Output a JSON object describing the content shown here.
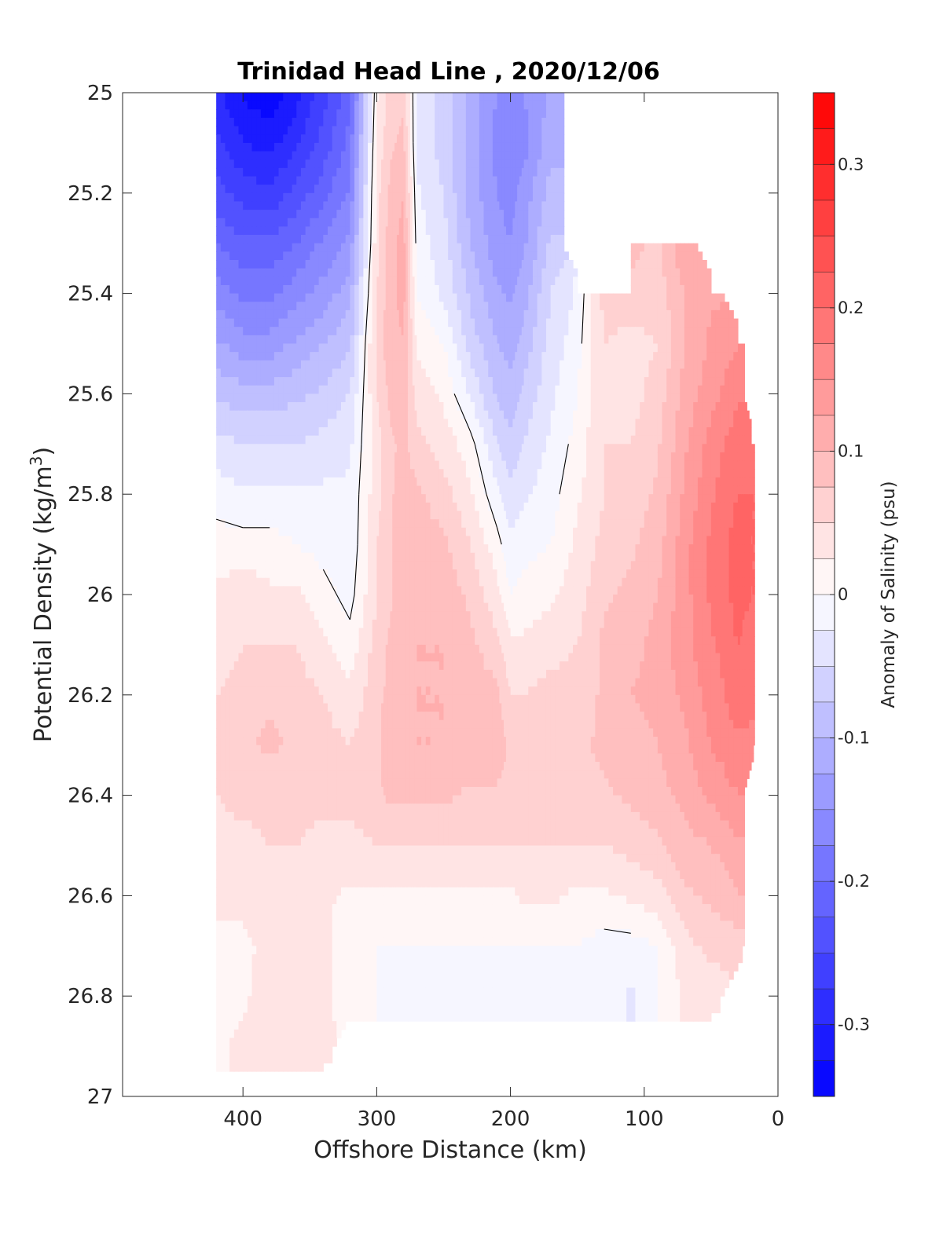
{
  "chart_data": {
    "type": "contour",
    "title": "Trinidad Head Line , 2020/12/06",
    "xlabel": "Offshore Distance (km)",
    "ylabel_main": "Potential Density (kg/m",
    "ylabel_sup": "3",
    "ylabel_end": ")",
    "colorbar_label": "Anomaly of Salinity (psu)",
    "xlim": [
      490,
      0
    ],
    "ylim": [
      25,
      27
    ],
    "x_ticks": [
      400,
      300,
      200,
      100,
      0
    ],
    "y_ticks": [
      25,
      25.2,
      25.4,
      25.6,
      25.8,
      26,
      26.2,
      26.4,
      26.6,
      26.8,
      27
    ],
    "colorbar_range": [
      -0.35,
      0.35
    ],
    "colorbar_step": 0.025,
    "colorbar_ticks": [
      -0.3,
      -0.2,
      -0.1,
      0,
      0.1,
      0.2,
      0.3
    ],
    "colormap": {
      "negative": "#0000ff",
      "zero": "#ffffff",
      "positive": "#ff0000"
    },
    "contour_line_level": 0,
    "x": [
      420,
      400,
      380,
      360,
      340,
      320,
      300,
      290,
      280,
      270,
      250,
      230,
      210,
      200,
      190,
      170,
      150,
      130,
      110,
      90,
      70,
      50,
      30,
      20
    ],
    "y": [
      25,
      25.1,
      25.2,
      25.3,
      25.4,
      25.5,
      25.6,
      25.7,
      25.8,
      25.9,
      26,
      26.1,
      26.2,
      26.3,
      26.4,
      26.5,
      26.6,
      26.7,
      26.8,
      26.9
    ],
    "values": [
      [
        -0.29,
        -0.33,
        -0.34,
        -0.31,
        -0.26,
        -0.21,
        0.02,
        0.06,
        0.07,
        -0.03,
        -0.06,
        -0.11,
        -0.15,
        -0.16,
        -0.15,
        -0.12,
        null,
        null,
        null,
        null,
        null,
        null,
        null,
        null
      ],
      [
        -0.27,
        -0.3,
        -0.31,
        -0.28,
        -0.24,
        -0.19,
        0.03,
        0.07,
        0.08,
        -0.03,
        -0.06,
        -0.11,
        -0.16,
        -0.17,
        -0.16,
        -0.11,
        null,
        null,
        null,
        null,
        null,
        null,
        null,
        null
      ],
      [
        -0.24,
        -0.26,
        -0.27,
        -0.24,
        -0.21,
        -0.17,
        0.04,
        0.08,
        0.1,
        -0.02,
        -0.05,
        -0.11,
        -0.15,
        -0.16,
        -0.14,
        -0.09,
        null,
        null,
        null,
        null,
        null,
        null,
        null,
        null
      ],
      [
        -0.2,
        -0.22,
        -0.22,
        -0.2,
        -0.17,
        -0.14,
        0.04,
        0.09,
        0.11,
        -0.01,
        -0.04,
        -0.1,
        -0.14,
        -0.15,
        -0.13,
        -0.07,
        null,
        null,
        0.08,
        0.07,
        0.12,
        null,
        null,
        null
      ],
      [
        -0.16,
        -0.18,
        -0.18,
        -0.16,
        -0.14,
        -0.11,
        0.05,
        0.09,
        0.11,
        0.0,
        -0.03,
        -0.08,
        -0.12,
        -0.13,
        -0.11,
        -0.05,
        -0.02,
        0.06,
        0.07,
        0.06,
        0.1,
        0.12,
        null,
        null
      ],
      [
        -0.12,
        -0.14,
        -0.14,
        -0.12,
        -0.1,
        -0.08,
        0.06,
        0.09,
        0.1,
        0.02,
        0.0,
        -0.06,
        -0.1,
        -0.11,
        -0.09,
        -0.04,
        -0.01,
        0.05,
        0.04,
        0.05,
        0.1,
        0.13,
        0.15,
        null
      ],
      [
        -0.08,
        -0.09,
        -0.09,
        -0.08,
        -0.07,
        -0.05,
        0.05,
        0.08,
        0.09,
        0.04,
        0.02,
        -0.03,
        -0.08,
        -0.09,
        -0.07,
        -0.03,
        0.0,
        0.05,
        0.04,
        0.06,
        0.11,
        0.14,
        0.17,
        null
      ],
      [
        -0.04,
        -0.05,
        -0.05,
        -0.05,
        -0.04,
        -0.03,
        0.04,
        0.07,
        0.08,
        0.06,
        0.04,
        0.01,
        -0.05,
        -0.07,
        -0.05,
        -0.02,
        0.01,
        0.05,
        0.05,
        0.07,
        0.12,
        0.16,
        0.19,
        0.19
      ],
      [
        -0.01,
        -0.02,
        -0.02,
        -0.02,
        -0.02,
        -0.02,
        0.04,
        0.07,
        0.09,
        0.08,
        0.06,
        0.03,
        -0.02,
        -0.04,
        -0.03,
        -0.01,
        0.02,
        0.05,
        0.06,
        0.08,
        0.13,
        0.17,
        0.2,
        0.2
      ],
      [
        0.01,
        0.01,
        0.01,
        0.0,
        -0.01,
        -0.02,
        0.05,
        0.07,
        0.09,
        0.09,
        0.08,
        0.05,
        0.01,
        -0.02,
        -0.01,
        0.0,
        0.03,
        0.06,
        0.07,
        0.09,
        0.14,
        0.18,
        0.21,
        0.2
      ],
      [
        0.03,
        0.04,
        0.03,
        0.03,
        0.01,
        -0.01,
        0.05,
        0.07,
        0.09,
        0.1,
        0.09,
        0.07,
        0.03,
        0.0,
        0.01,
        0.02,
        0.04,
        0.07,
        0.08,
        0.1,
        0.14,
        0.18,
        0.21,
        0.2
      ],
      [
        0.04,
        0.05,
        0.05,
        0.05,
        0.03,
        0.01,
        0.06,
        0.08,
        0.09,
        0.1,
        0.1,
        0.08,
        0.06,
        0.03,
        0.03,
        0.04,
        0.05,
        0.08,
        0.09,
        0.11,
        0.14,
        0.17,
        0.2,
        0.19
      ],
      [
        0.05,
        0.06,
        0.07,
        0.06,
        0.05,
        0.03,
        0.07,
        0.08,
        0.09,
        0.1,
        0.1,
        0.09,
        0.08,
        0.05,
        0.05,
        0.06,
        0.06,
        0.08,
        0.1,
        0.11,
        0.13,
        0.16,
        0.19,
        0.18
      ],
      [
        0.06,
        0.07,
        0.08,
        0.07,
        0.06,
        0.05,
        0.07,
        0.09,
        0.09,
        0.1,
        0.1,
        0.1,
        0.09,
        0.07,
        0.06,
        0.07,
        0.07,
        0.08,
        0.09,
        0.1,
        0.12,
        0.15,
        0.17,
        0.17
      ],
      [
        0.05,
        0.06,
        0.06,
        0.06,
        0.06,
        0.06,
        0.07,
        0.08,
        0.08,
        0.08,
        0.08,
        0.07,
        0.07,
        0.07,
        0.06,
        0.06,
        0.06,
        0.07,
        0.08,
        0.09,
        0.11,
        0.13,
        0.15,
        null
      ],
      [
        0.04,
        0.04,
        0.05,
        0.05,
        0.04,
        0.04,
        0.05,
        0.05,
        0.05,
        0.05,
        0.05,
        0.05,
        0.05,
        0.05,
        0.05,
        0.05,
        0.05,
        0.05,
        0.06,
        0.07,
        0.09,
        0.1,
        0.12,
        null
      ],
      [
        0.03,
        0.03,
        0.04,
        0.04,
        0.03,
        0.02,
        0.02,
        0.02,
        0.02,
        0.02,
        0.02,
        0.02,
        0.02,
        0.02,
        0.03,
        0.03,
        0.02,
        0.02,
        0.03,
        0.04,
        0.07,
        0.08,
        0.1,
        null
      ],
      [
        0.02,
        0.02,
        0.03,
        0.04,
        0.03,
        0.01,
        0.0,
        0.0,
        0.0,
        0.0,
        0.0,
        0.0,
        0.0,
        0.0,
        0.0,
        0.0,
        0.0,
        -0.01,
        -0.01,
        0.0,
        0.04,
        0.06,
        0.06,
        null
      ],
      [
        0.01,
        0.02,
        0.04,
        0.05,
        0.03,
        0.01,
        0.0,
        0.0,
        0.0,
        0.0,
        0.0,
        0.0,
        0.0,
        0.0,
        0.0,
        0.0,
        0.0,
        0.0,
        -0.03,
        0.0,
        0.03,
        0.03,
        null,
        null
      ],
      [
        0.02,
        0.03,
        0.04,
        0.04,
        0.03,
        null,
        null,
        null,
        null,
        null,
        null,
        null,
        null,
        null,
        null,
        null,
        null,
        null,
        null,
        null,
        null,
        null,
        null,
        null
      ]
    ]
  }
}
